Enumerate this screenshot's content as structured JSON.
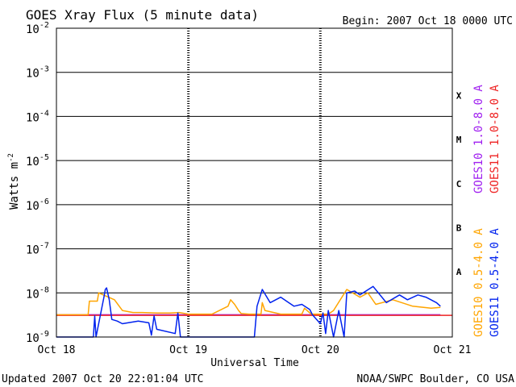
{
  "header": {
    "title": "GOES Xray Flux (5 minute data)",
    "begin": "Begin:  2007 Oct 18 0000 UTC"
  },
  "footer": {
    "updated": "Updated 2007 Oct 20 22:01:04 UTC",
    "credit": "NOAA/SWPC Boulder, CO USA"
  },
  "chart_data": {
    "type": "line",
    "title": "GOES Xray Flux (5 minute data)",
    "xlabel": "Universal Time",
    "ylabel_main": "Watts m",
    "ylabel_sup": "-2",
    "y_scale": "log",
    "ylim": [
      1e-09,
      0.01
    ],
    "y_ticks": [
      {
        "exp": -2,
        "value": 0.01
      },
      {
        "exp": -3,
        "value": 0.001
      },
      {
        "exp": -4,
        "value": 0.0001
      },
      {
        "exp": -5,
        "value": 1e-05
      },
      {
        "exp": -6,
        "value": 1e-06
      },
      {
        "exp": -7,
        "value": 1e-07
      },
      {
        "exp": -8,
        "value": 1e-08
      },
      {
        "exp": -9,
        "value": 1e-09
      }
    ],
    "xlim": [
      "2007-10-18 00:00",
      "2007-10-21 00:00"
    ],
    "x_ticks": [
      "Oct 18",
      "Oct 19",
      "Oct 20",
      "Oct 21"
    ],
    "flare_classes": [
      {
        "label": "X",
        "value": 0.0003
      },
      {
        "label": "M",
        "value": 3e-05
      },
      {
        "label": "C",
        "value": 3e-06
      },
      {
        "label": "B",
        "value": 3e-07
      },
      {
        "label": "A",
        "value": 3e-08
      }
    ],
    "grid": true,
    "legend_position": "right",
    "colors": {
      "goes10_long": "#a020f0",
      "goes11_long": "#ee2222",
      "goes10_short": "#ffa500",
      "goes11_short": "#0022ee"
    },
    "series": [
      {
        "name": "GOES10 1.0-8.0 A",
        "color": "#a020f0",
        "x": [
          0.0,
          0.18,
          0.34,
          0.5,
          0.66,
          0.82,
          1.0,
          1.18,
          1.34,
          1.5,
          1.66,
          1.82,
          2.0,
          2.18,
          2.34,
          2.5,
          2.66,
          2.82,
          2.91
        ],
        "y": [
          3.2e-09,
          3.2e-09,
          3.2e-09,
          3.2e-09,
          3.2e-09,
          3.2e-09,
          3.2e-09,
          3.2e-09,
          3.2e-09,
          3.2e-09,
          3.2e-09,
          3.2e-09,
          3.2e-09,
          3.2e-09,
          3.2e-09,
          3.2e-09,
          3.2e-09,
          3.2e-09,
          3.2e-09
        ]
      },
      {
        "name": "GOES11 1.0-8.0 A",
        "color": "#ee2222",
        "x": [
          0.0,
          0.18,
          0.34,
          0.5,
          0.66,
          0.82,
          1.0,
          1.18,
          1.34,
          1.5,
          1.66,
          1.82,
          2.0,
          2.18,
          2.34,
          2.5,
          2.66,
          2.82,
          3.0
        ],
        "y": [
          3.1e-09,
          3.1e-09,
          3.1e-09,
          3.1e-09,
          3.1e-09,
          3.1e-09,
          3.1e-09,
          3.1e-09,
          3.1e-09,
          3.1e-09,
          3.1e-09,
          3.1e-09,
          3.1e-09,
          3.1e-09,
          3.1e-09,
          3.1e-09,
          3.1e-09,
          3.1e-09,
          3.1e-09
        ]
      },
      {
        "name": "GOES10 0.5-4.0 A",
        "color": "#ffa500",
        "x": [
          0.0,
          0.12,
          0.24,
          0.25,
          0.31,
          0.32,
          0.44,
          0.5,
          0.58,
          0.65,
          0.76,
          0.86,
          0.93,
          1.0,
          1.07,
          1.18,
          1.3,
          1.32,
          1.35,
          1.38,
          1.4,
          1.46,
          1.55,
          1.56,
          1.58,
          1.7,
          1.86,
          1.88,
          1.93,
          1.98,
          2.0,
          2.06,
          2.1,
          2.2,
          2.3,
          2.36,
          2.42,
          2.55,
          2.7,
          2.84,
          2.91
        ],
        "y": [
          3.2e-09,
          3.2e-09,
          3.2e-09,
          6.5e-09,
          6.5e-09,
          1e-08,
          7e-09,
          4e-09,
          3.6e-09,
          3.6e-09,
          3.5e-09,
          3.5e-09,
          3.6e-09,
          3.3e-09,
          3.3e-09,
          3.3e-09,
          5e-09,
          7e-09,
          5.5e-09,
          4e-09,
          3.4e-09,
          3.3e-09,
          3.3e-09,
          6e-09,
          4e-09,
          3.3e-09,
          3.3e-09,
          4.5e-09,
          3.3e-09,
          3.3e-09,
          3.3e-09,
          3.3e-09,
          4e-09,
          1.2e-08,
          8e-09,
          1e-08,
          5.5e-09,
          7e-09,
          5e-09,
          4.5e-09,
          4.7e-09
        ]
      },
      {
        "name": "GOES11 0.5-4.0 A",
        "color": "#0022ee",
        "x": [
          0.0,
          0.28,
          0.29,
          0.3,
          0.36,
          0.37,
          0.38,
          0.4,
          0.42,
          0.46,
          0.5,
          0.62,
          0.7,
          0.72,
          0.74,
          0.76,
          0.9,
          0.92,
          0.94,
          1.0,
          1.4,
          1.5,
          1.52,
          1.56,
          1.62,
          1.7,
          1.76,
          1.8,
          1.86,
          1.92,
          1.94,
          2.0,
          2.02,
          2.04,
          2.06,
          2.1,
          2.14,
          2.18,
          2.2,
          2.26,
          2.3,
          2.4,
          2.5,
          2.6,
          2.66,
          2.74,
          2.8,
          2.88,
          2.91
        ],
        "y": [
          1e-09,
          1e-09,
          3e-09,
          1e-09,
          8e-09,
          1.2e-08,
          1.3e-08,
          7e-09,
          2.5e-09,
          2.3e-09,
          2e-09,
          2.3e-09,
          2.1e-09,
          1.1e-09,
          3e-09,
          1.5e-09,
          1.2e-09,
          3.5e-09,
          1e-09,
          1e-09,
          1e-09,
          1e-09,
          5e-09,
          1.2e-08,
          6e-09,
          8e-09,
          6e-09,
          5e-09,
          5.5e-09,
          4.2e-09,
          3.2e-09,
          2e-09,
          3.5e-09,
          1.2e-09,
          4e-09,
          1e-09,
          4e-09,
          1e-09,
          1e-08,
          1.1e-08,
          9e-09,
          1.4e-08,
          6e-09,
          9e-09,
          7e-09,
          9e-09,
          8e-09,
          6e-09,
          5e-09
        ]
      }
    ]
  }
}
